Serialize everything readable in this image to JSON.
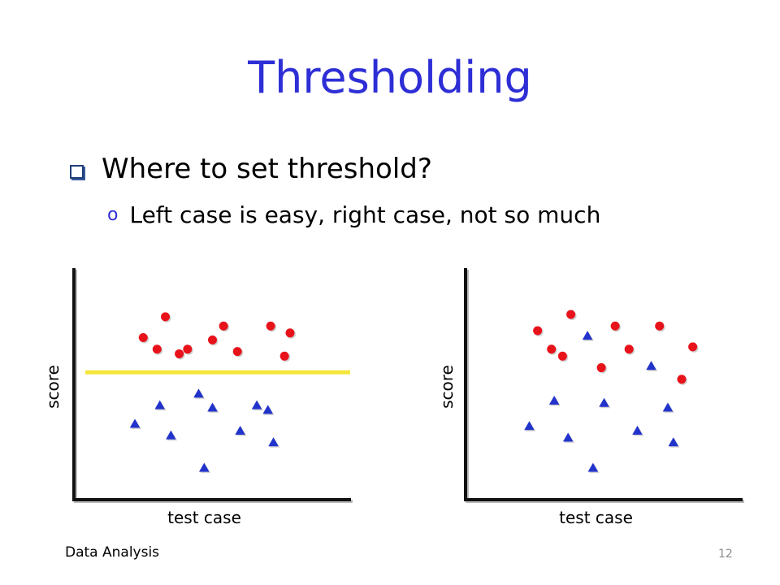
{
  "slide": {
    "title": "Thresholding",
    "bullet": "Where to set threshold?",
    "sub_bullet_marker": "o",
    "sub_bullet": "Left case is easy, right case, not so much",
    "footer_left": "Data Analysis",
    "page_number": "12"
  },
  "colors": {
    "title": "#2e2ed6",
    "circle": "#e8121b",
    "triangle": "#2233cc",
    "threshold": "#f5e63c",
    "axis": "#111111"
  },
  "chart_data": [
    {
      "type": "scatter",
      "xlabel": "test case",
      "ylabel": "score",
      "xlim": [
        0,
        100
      ],
      "ylim": [
        0,
        100
      ],
      "grid": false,
      "threshold_y": 55,
      "series": [
        {
          "marker": "circle",
          "points": [
            [
              25,
              70
            ],
            [
              33,
              79
            ],
            [
              38,
              63
            ],
            [
              41,
              65
            ],
            [
              50,
              69
            ],
            [
              54,
              75
            ],
            [
              59,
              64
            ],
            [
              71,
              75
            ],
            [
              76,
              62
            ],
            [
              78,
              72
            ],
            [
              30,
              65
            ]
          ]
        },
        {
          "marker": "triangle",
          "points": [
            [
              22,
              33
            ],
            [
              31,
              41
            ],
            [
              35,
              28
            ],
            [
              45,
              46
            ],
            [
              50,
              40
            ],
            [
              47,
              14
            ],
            [
              60,
              30
            ],
            [
              66,
              41
            ],
            [
              70,
              39
            ],
            [
              72,
              25
            ]
          ]
        }
      ]
    },
    {
      "type": "scatter",
      "xlabel": "test case",
      "ylabel": "score",
      "xlim": [
        0,
        100
      ],
      "ylim": [
        0,
        100
      ],
      "grid": false,
      "series": [
        {
          "marker": "circle",
          "points": [
            [
              26,
              73
            ],
            [
              38,
              80
            ],
            [
              54,
              75
            ],
            [
              35,
              62
            ],
            [
              31,
              65
            ],
            [
              59,
              65
            ],
            [
              70,
              75
            ],
            [
              82,
              66
            ],
            [
              78,
              52
            ],
            [
              49,
              57
            ]
          ]
        },
        {
          "marker": "triangle",
          "points": [
            [
              44,
              71
            ],
            [
              67,
              58
            ],
            [
              23,
              32
            ],
            [
              32,
              43
            ],
            [
              37,
              27
            ],
            [
              50,
              42
            ],
            [
              62,
              30
            ],
            [
              73,
              40
            ],
            [
              75,
              25
            ],
            [
              46,
              14
            ]
          ]
        }
      ]
    }
  ]
}
